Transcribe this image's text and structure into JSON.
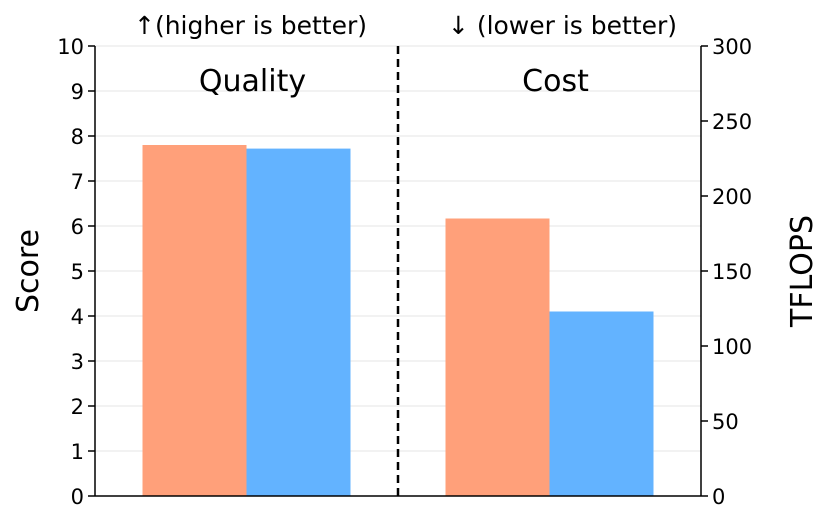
{
  "chart_data": {
    "type": "bar",
    "panels": [
      {
        "title": "Quality",
        "note": "↑(higher is better)",
        "axis": "left",
        "values": [
          7.8,
          7.72
        ]
      },
      {
        "title": "Cost",
        "note": "↓ (lower is better)",
        "axis": "right",
        "values": [
          185,
          123
        ]
      }
    ],
    "series_colors": [
      "#FFA07A",
      "#63B3FF"
    ],
    "left_axis": {
      "label": "Score",
      "ylim": [
        0,
        10
      ],
      "ticks": [
        "0",
        "1",
        "2",
        "3",
        "4",
        "5",
        "6",
        "7",
        "8",
        "9",
        "10"
      ]
    },
    "right_axis": {
      "label": "TFLOPS",
      "ylim": [
        0,
        300
      ],
      "ticks": [
        "0",
        "50",
        "100",
        "150",
        "200",
        "250",
        "300"
      ]
    },
    "grid": true,
    "divider": "dashed-center"
  }
}
